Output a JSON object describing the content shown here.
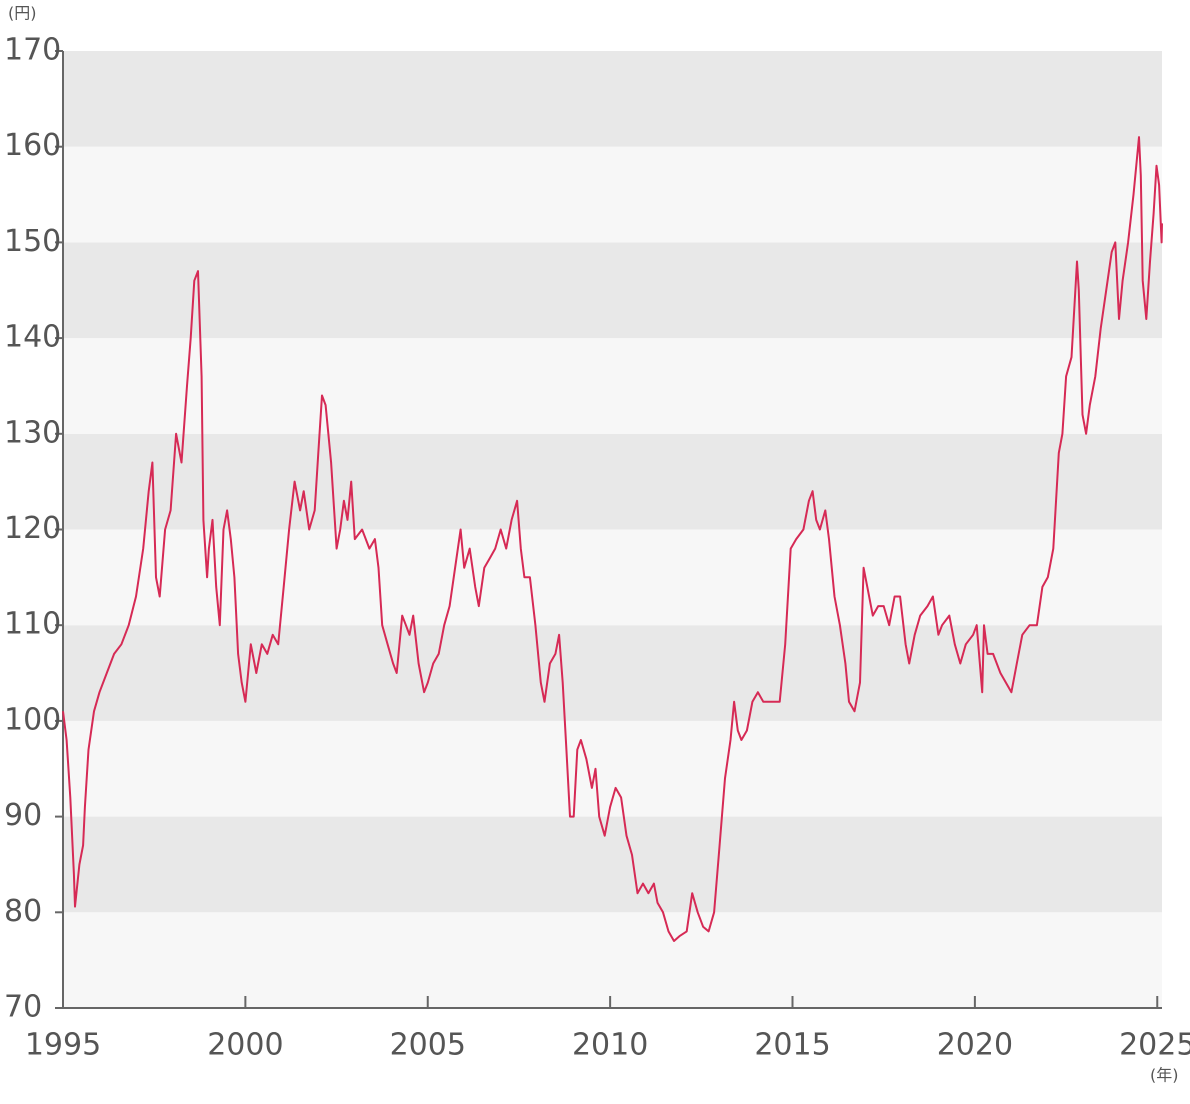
{
  "chart_data": {
    "type": "line",
    "y_unit": "(円)",
    "x_unit": "(年)",
    "xlim": [
      1995,
      2025.13
    ],
    "ylim": [
      70,
      170
    ],
    "xticks": [
      1995,
      2000,
      2005,
      2010,
      2015,
      2020,
      2025
    ],
    "yticks": [
      70,
      80,
      90,
      100,
      110,
      120,
      130,
      140,
      150,
      160,
      170
    ],
    "bands": [
      "#f7f7f7",
      "#e8e8e8"
    ],
    "series": [
      {
        "color": "#d62a55",
        "x": [
          1995.0,
          1995.1,
          1995.2,
          1995.3,
          1995.33,
          1995.45,
          1995.55,
          1995.6,
          1995.7,
          1995.85,
          1996.0,
          1996.2,
          1996.4,
          1996.6,
          1996.8,
          1997.0,
          1997.2,
          1997.35,
          1997.45,
          1997.55,
          1997.65,
          1997.8,
          1997.95,
          1998.1,
          1998.25,
          1998.4,
          1998.5,
          1998.6,
          1998.7,
          1998.8,
          1998.85,
          1998.95,
          1999.0,
          1999.1,
          1999.2,
          1999.3,
          1999.4,
          1999.5,
          1999.6,
          1999.7,
          1999.8,
          1999.9,
          2000.0,
          2000.15,
          2000.3,
          2000.45,
          2000.6,
          2000.75,
          2000.9,
          2001.05,
          2001.2,
          2001.35,
          2001.5,
          2001.6,
          2001.75,
          2001.9,
          2002.0,
          2002.1,
          2002.2,
          2002.35,
          2002.5,
          2002.6,
          2002.7,
          2002.8,
          2002.9,
          2003.0,
          2003.2,
          2003.4,
          2003.55,
          2003.65,
          2003.75,
          2003.9,
          2004.05,
          2004.15,
          2004.3,
          2004.4,
          2004.5,
          2004.6,
          2004.75,
          2004.9,
          2005.0,
          2005.15,
          2005.3,
          2005.45,
          2005.6,
          2005.75,
          2005.9,
          2006.0,
          2006.15,
          2006.3,
          2006.4,
          2006.55,
          2006.7,
          2006.85,
          2007.0,
          2007.15,
          2007.3,
          2007.45,
          2007.55,
          2007.65,
          2007.8,
          2007.95,
          2008.1,
          2008.2,
          2008.35,
          2008.5,
          2008.6,
          2008.7,
          2008.8,
          2008.9,
          2009.0,
          2009.1,
          2009.2,
          2009.35,
          2009.5,
          2009.6,
          2009.7,
          2009.85,
          2010.0,
          2010.15,
          2010.3,
          2010.45,
          2010.6,
          2010.75,
          2010.9,
          2011.05,
          2011.2,
          2011.3,
          2011.45,
          2011.6,
          2011.75,
          2011.9,
          2012.1,
          2012.25,
          2012.4,
          2012.55,
          2012.7,
          2012.85,
          2013.0,
          2013.15,
          2013.3,
          2013.4,
          2013.5,
          2013.6,
          2013.75,
          2013.9,
          2014.05,
          2014.2,
          2014.45,
          2014.65,
          2014.8,
          2014.95,
          2015.1,
          2015.3,
          2015.45,
          2015.55,
          2015.65,
          2015.75,
          2015.9,
          2016.0,
          2016.15,
          2016.3,
          2016.45,
          2016.55,
          2016.7,
          2016.85,
          2016.95,
          2017.05,
          2017.2,
          2017.35,
          2017.5,
          2017.65,
          2017.8,
          2017.95,
          2018.1,
          2018.2,
          2018.35,
          2018.5,
          2018.7,
          2018.85,
          2019.0,
          2019.1,
          2019.3,
          2019.45,
          2019.6,
          2019.75,
          2019.95,
          2020.05,
          2020.2,
          2020.25,
          2020.35,
          2020.5,
          2020.7,
          2020.85,
          2021.0,
          2021.15,
          2021.3,
          2021.5,
          2021.7,
          2021.85,
          2022.0,
          2022.15,
          2022.3,
          2022.4,
          2022.5,
          2022.65,
          2022.8,
          2022.85,
          2022.95,
          2023.05,
          2023.15,
          2023.3,
          2023.45,
          2023.6,
          2023.75,
          2023.85,
          2023.95,
          2024.05,
          2024.2,
          2024.35,
          2024.5,
          2024.55,
          2024.6,
          2024.7,
          2024.8,
          2024.9,
          2024.98,
          2025.05,
          2025.12,
          2025.13
        ],
        "values": [
          101,
          98,
          92,
          84,
          80.6,
          85,
          87,
          91,
          97,
          101,
          103,
          105,
          107,
          108,
          110,
          113,
          118,
          124,
          127,
          115,
          113,
          120,
          122,
          130,
          127,
          135,
          140,
          146,
          147,
          136,
          121,
          115,
          118,
          121,
          114,
          110,
          120,
          122,
          119,
          115,
          107,
          104,
          102,
          108,
          105,
          108,
          107,
          109,
          108,
          114,
          120,
          125,
          122,
          124,
          120,
          122,
          128,
          134,
          133,
          127,
          118,
          120,
          123,
          121,
          125,
          119,
          120,
          118,
          119,
          116,
          110,
          108,
          106,
          105,
          111,
          110,
          109,
          111,
          106,
          103,
          104,
          106,
          107,
          110,
          112,
          116,
          120,
          116,
          118,
          114,
          112,
          116,
          117,
          118,
          120,
          118,
          121,
          123,
          118,
          115,
          115,
          110,
          104,
          102,
          106,
          107,
          109,
          104,
          97,
          90,
          90,
          97,
          98,
          96,
          93,
          95,
          90,
          88,
          91,
          93,
          92,
          88,
          86,
          82,
          83,
          82,
          83,
          81,
          80,
          78,
          77,
          77.5,
          78,
          82,
          80,
          78.5,
          78,
          80,
          87,
          94,
          98,
          102,
          99,
          98,
          99,
          102,
          103,
          102,
          102,
          102,
          108,
          118,
          119,
          120,
          123,
          124,
          121,
          120,
          122,
          119,
          113,
          110,
          106,
          102,
          101,
          104,
          116,
          114,
          111,
          112,
          112,
          110,
          113,
          113,
          108,
          106,
          109,
          111,
          112,
          113,
          109,
          110,
          111,
          108,
          106,
          108,
          109,
          110,
          103,
          110,
          107,
          107,
          105,
          104,
          103,
          106,
          109,
          110,
          110,
          114,
          115,
          118,
          128,
          130,
          136,
          138,
          148,
          145,
          132,
          130,
          133,
          136,
          141,
          145,
          149,
          150,
          142,
          146,
          150,
          155,
          161,
          157,
          146,
          142,
          148,
          153,
          158,
          156,
          150,
          152
        ]
      }
    ]
  }
}
